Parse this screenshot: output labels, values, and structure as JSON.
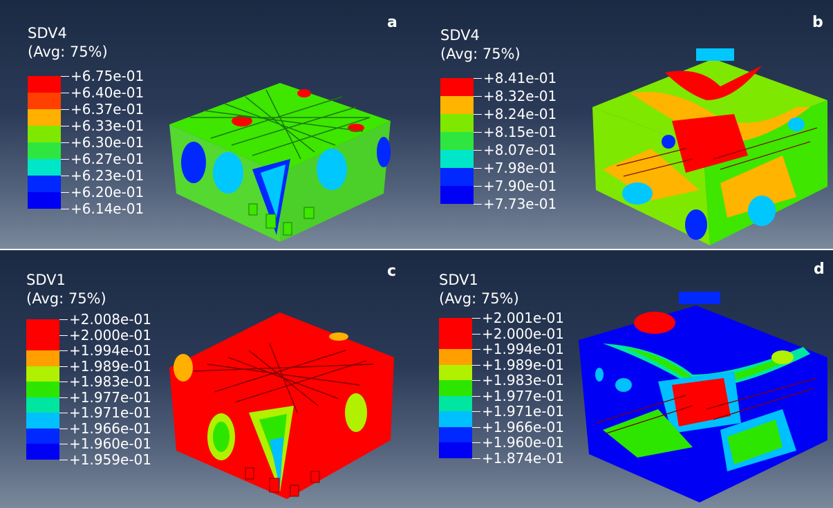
{
  "colors": {
    "red": "#ff0000",
    "orange": "#ffae00",
    "yellow_green": "#a6ec00",
    "green": "#3ee600",
    "teal_green": "#00e67a",
    "cyan": "#00c8ff",
    "blue": "#0028ff",
    "deep_blue": "#0000f5"
  },
  "panels": [
    {
      "letter": "a",
      "variable": "SDV4",
      "average": "(Avg: 75%)",
      "ticks": [
        "+6.75e-01",
        "+6.40e-01",
        "+6.37e-01",
        "+6.33e-01",
        "+6.30e-01",
        "+6.27e-01",
        "+6.23e-01",
        "+6.20e-01",
        "+6.14e-01"
      ],
      "bands": [
        "#ff0000",
        "#ff4000",
        "#ffb000",
        "#7ee800",
        "#2fe640",
        "#00e6c8",
        "#0028ff",
        "#0000f5"
      ]
    },
    {
      "letter": "b",
      "variable": "SDV4",
      "average": "(Avg: 75%)",
      "ticks": [
        "+8.41e-01",
        "+8.32e-01",
        "+8.24e-01",
        "+8.15e-01",
        "+8.07e-01",
        "+7.98e-01",
        "+7.90e-01",
        "+7.73e-01"
      ],
      "bands": [
        "#ff0000",
        "#ffb400",
        "#7ee800",
        "#2fe640",
        "#00e6c8",
        "#0028ff",
        "#0000f5"
      ]
    },
    {
      "letter": "c",
      "variable": "SDV1",
      "average": "(Avg: 75%)",
      "ticks": [
        "+2.008e-01",
        "+2.000e-01",
        "+1.994e-01",
        "+1.989e-01",
        "+1.983e-01",
        "+1.977e-01",
        "+1.971e-01",
        "+1.966e-01",
        "+1.960e-01",
        "+1.959e-01"
      ],
      "bands": [
        "#ff0000",
        "#ff0000",
        "#ffa000",
        "#b0f000",
        "#2de600",
        "#00e6a0",
        "#00c0ff",
        "#0028ff",
        "#0000f5"
      ]
    },
    {
      "letter": "d",
      "variable": "SDV1",
      "average": "(Avg: 75%)",
      "ticks": [
        "+2.001e-01",
        "+2.000e-01",
        "+1.994e-01",
        "+1.989e-01",
        "+1.983e-01",
        "+1.977e-01",
        "+1.971e-01",
        "+1.966e-01",
        "+1.960e-01",
        "+1.874e-01"
      ],
      "bands": [
        "#ff0000",
        "#ff0000",
        "#ffa000",
        "#b0f000",
        "#2de600",
        "#00e6a0",
        "#00c0ff",
        "#0028ff",
        "#0000f5"
      ]
    }
  ]
}
